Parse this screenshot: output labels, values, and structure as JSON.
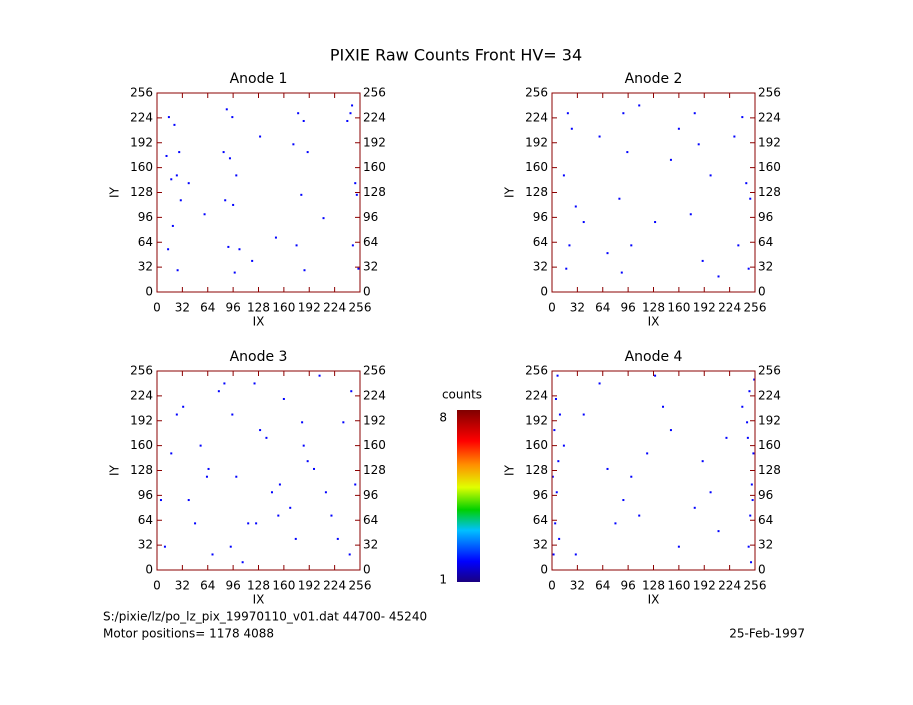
{
  "title": "PIXIE Raw Counts Front HV= 34",
  "colorbar": {
    "label": "counts",
    "min": 1,
    "max": 8
  },
  "footer": {
    "file": "S:/pixie/lz/po_lz_pix_19970110_v01.dat   44700- 45240",
    "motor": "Motor positions= 1178 4088",
    "date": "25-Feb-1997"
  },
  "chart_data": [
    {
      "type": "scatter",
      "title": "Anode 1",
      "xlabel": "IX",
      "ylabel": "IY",
      "xlim": [
        0,
        256
      ],
      "ylim": [
        0,
        256
      ],
      "xticks": [
        0,
        32,
        64,
        96,
        128,
        160,
        192,
        224,
        256
      ],
      "yticks": [
        0,
        32,
        64,
        96,
        128,
        160,
        192,
        224,
        256
      ],
      "color": "#0000ff",
      "x": [
        15,
        22,
        28,
        12,
        25,
        18,
        30,
        20,
        14,
        26,
        88,
        95,
        84,
        92,
        100,
        86,
        96,
        90,
        104,
        98,
        178,
        185,
        172,
        190,
        182,
        176,
        186,
        244,
        250,
        252,
        247,
        254,
        240,
        246,
        60,
        130,
        210,
        150,
        40,
        120
      ],
      "y": [
        225,
        215,
        180,
        175,
        150,
        145,
        118,
        85,
        55,
        28,
        235,
        225,
        180,
        172,
        150,
        118,
        112,
        58,
        55,
        25,
        230,
        220,
        190,
        180,
        125,
        60,
        28,
        230,
        140,
        125,
        60,
        30,
        220,
        240,
        100,
        200,
        95,
        70,
        140,
        40
      ]
    },
    {
      "type": "scatter",
      "title": "Anode 2",
      "xlabel": "IX",
      "ylabel": "IY",
      "xlim": [
        0,
        256
      ],
      "ylim": [
        0,
        256
      ],
      "xticks": [
        0,
        32,
        64,
        96,
        128,
        160,
        192,
        224,
        256
      ],
      "yticks": [
        0,
        32,
        64,
        96,
        128,
        160,
        192,
        224,
        256
      ],
      "color": "#0000ff",
      "x": [
        20,
        25,
        15,
        30,
        22,
        18,
        90,
        95,
        85,
        100,
        88,
        180,
        185,
        175,
        190,
        240,
        245,
        235,
        250,
        248,
        60,
        130,
        200,
        150,
        110,
        40,
        210,
        70,
        160,
        230
      ],
      "y": [
        230,
        210,
        150,
        110,
        60,
        30,
        230,
        180,
        120,
        60,
        25,
        230,
        190,
        100,
        40,
        225,
        140,
        60,
        120,
        30,
        200,
        90,
        150,
        170,
        240,
        90,
        20,
        50,
        210,
        200
      ]
    },
    {
      "type": "scatter",
      "title": "Anode 3",
      "xlabel": "IX",
      "ylabel": "IY",
      "xlim": [
        0,
        256
      ],
      "ylim": [
        0,
        256
      ],
      "xticks": [
        0,
        32,
        64,
        96,
        128,
        160,
        192,
        224,
        256
      ],
      "yticks": [
        0,
        32,
        64,
        96,
        128,
        160,
        192,
        224,
        256
      ],
      "color": "#0000ff",
      "x": [
        10,
        25,
        40,
        55,
        70,
        85,
        100,
        115,
        130,
        145,
        160,
        175,
        190,
        205,
        220,
        235,
        250,
        18,
        48,
        78,
        108,
        138,
        168,
        198,
        228,
        33,
        63,
        93,
        123,
        153,
        183,
        213,
        243,
        5,
        65,
        125,
        185,
        245,
        95,
        155
      ],
      "y": [
        30,
        200,
        90,
        160,
        20,
        240,
        120,
        60,
        180,
        100,
        220,
        40,
        140,
        250,
        70,
        190,
        110,
        150,
        60,
        230,
        10,
        170,
        80,
        130,
        40,
        210,
        120,
        30,
        240,
        70,
        190,
        100,
        20,
        90,
        130,
        60,
        160,
        230,
        200,
        110
      ]
    },
    {
      "type": "scatter",
      "title": "Anode 4",
      "xlabel": "IX",
      "ylabel": "IY",
      "xlim": [
        0,
        256
      ],
      "ylim": [
        0,
        256
      ],
      "xticks": [
        0,
        32,
        64,
        96,
        128,
        160,
        192,
        224,
        256
      ],
      "yticks": [
        0,
        32,
        64,
        96,
        128,
        160,
        192,
        224,
        256
      ],
      "color": "#0000ff",
      "x": [
        2,
        4,
        6,
        8,
        3,
        5,
        7,
        9,
        1,
        10,
        248,
        250,
        252,
        254,
        246,
        249,
        251,
        253,
        247,
        255,
        40,
        80,
        120,
        160,
        200,
        60,
        100,
        140,
        180,
        220,
        30,
        90,
        150,
        210,
        70,
        130,
        190,
        15,
        240,
        110
      ],
      "y": [
        20,
        60,
        100,
        140,
        180,
        220,
        250,
        40,
        120,
        200,
        30,
        70,
        110,
        150,
        190,
        230,
        10,
        90,
        170,
        245,
        200,
        60,
        150,
        30,
        100,
        240,
        120,
        210,
        80,
        170,
        20,
        90,
        180,
        50,
        130,
        250,
        140,
        160,
        210,
        70
      ]
    }
  ]
}
